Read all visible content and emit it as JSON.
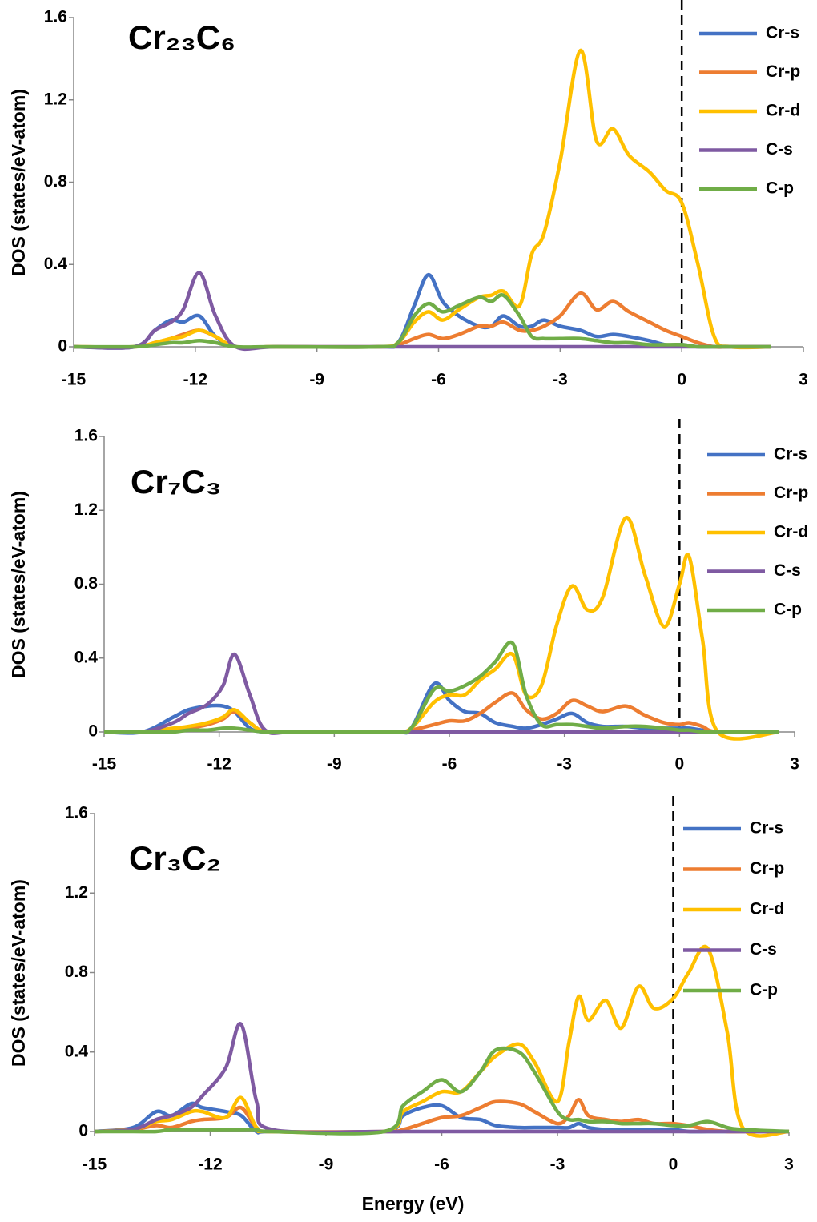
{
  "chart_data": [
    {
      "type": "line",
      "title": "Cr₂₃C₆",
      "y_label": "DOS (states/eV-atom)",
      "x": [
        -15,
        -13.5,
        -13,
        -12.6,
        -12.3,
        -11.9,
        -11.5,
        -11,
        -10,
        -7.5,
        -7,
        -6.6,
        -6.25,
        -5.9,
        -5.5,
        -5,
        -4.7,
        -4.4,
        -4,
        -3.7,
        -3.4,
        -3,
        -2.5,
        -2.1,
        -1.7,
        -1.3,
        -0.8,
        -0.4,
        0,
        0.4,
        0.8,
        1.2,
        2.2
      ],
      "series": [
        {
          "name": "Cr-s",
          "color": "#4472c4",
          "values": [
            0,
            0,
            0.08,
            0.13,
            0.12,
            0.15,
            0.05,
            0,
            0,
            0,
            0.02,
            0.2,
            0.35,
            0.22,
            0.15,
            0.1,
            0.1,
            0.15,
            0.1,
            0.1,
            0.13,
            0.1,
            0.08,
            0.05,
            0.06,
            0.05,
            0.03,
            0.01,
            0.01,
            0,
            0,
            0,
            0
          ]
        },
        {
          "name": "Cr-p",
          "color": "#ed7d31",
          "values": [
            0,
            0,
            0.02,
            0.04,
            0.06,
            0.08,
            0.05,
            0,
            0,
            0,
            0.01,
            0.04,
            0.06,
            0.04,
            0.06,
            0.1,
            0.1,
            0.12,
            0.08,
            0.08,
            0.1,
            0.15,
            0.26,
            0.18,
            0.22,
            0.17,
            0.12,
            0.08,
            0.05,
            0.02,
            0,
            0,
            0
          ]
        },
        {
          "name": "Cr-d",
          "color": "#ffc000",
          "values": [
            0,
            0,
            0.02,
            0.04,
            0.05,
            0.08,
            0.05,
            0,
            0,
            0,
            0.02,
            0.12,
            0.17,
            0.13,
            0.18,
            0.24,
            0.25,
            0.27,
            0.2,
            0.45,
            0.55,
            0.9,
            1.44,
            1.0,
            1.06,
            0.93,
            0.85,
            0.76,
            0.7,
            0.4,
            0.05,
            0,
            0
          ]
        },
        {
          "name": "C-s",
          "color": "#7f5aa2",
          "values": [
            0,
            0,
            0.08,
            0.12,
            0.18,
            0.36,
            0.15,
            0,
            0,
            0,
            0,
            0,
            0,
            0,
            0,
            0,
            0,
            0,
            0,
            0,
            0,
            0,
            0,
            0,
            0,
            0,
            0,
            0,
            0,
            0,
            0,
            0,
            0
          ]
        },
        {
          "name": "C-p",
          "color": "#70ad47",
          "values": [
            0,
            0,
            0.01,
            0.02,
            0.02,
            0.03,
            0.02,
            0,
            0,
            0,
            0.02,
            0.15,
            0.21,
            0.17,
            0.2,
            0.24,
            0.22,
            0.25,
            0.15,
            0.05,
            0.04,
            0.04,
            0.04,
            0.03,
            0.02,
            0.02,
            0.01,
            0.01,
            0.01,
            0,
            0,
            0,
            0
          ]
        }
      ],
      "xlim": [
        -15,
        3
      ],
      "xticks": [
        -15,
        -12,
        -9,
        -6,
        -3,
        0,
        3
      ],
      "ylim": [
        0,
        1.6
      ],
      "yticks": [
        0,
        0.4,
        0.8,
        1.2,
        1.6
      ],
      "legend": "upper right"
    },
    {
      "type": "line",
      "title": "Cr₇C₃",
      "y_label": "DOS (states/eV-atom)",
      "x": [
        -15,
        -14,
        -13.2,
        -12.8,
        -12.3,
        -11.9,
        -11.6,
        -11.2,
        -10.8,
        -10,
        -7.5,
        -7,
        -6.4,
        -6,
        -5.6,
        -5.2,
        -4.8,
        -4.35,
        -4,
        -3.6,
        -3.2,
        -2.8,
        -2.4,
        -2,
        -1.4,
        -0.9,
        -0.4,
        0,
        0.25,
        0.6,
        1,
        2.6
      ],
      "series": [
        {
          "name": "Cr-s",
          "color": "#4472c4",
          "values": [
            0,
            0,
            0.08,
            0.12,
            0.14,
            0.14,
            0.11,
            0.02,
            0,
            0,
            0,
            0.02,
            0.26,
            0.17,
            0.11,
            0.1,
            0.05,
            0.03,
            0.02,
            0.04,
            0.07,
            0.1,
            0.05,
            0.03,
            0.03,
            0.02,
            0.02,
            0.02,
            0.02,
            0.01,
            0,
            0
          ]
        },
        {
          "name": "Cr-p",
          "color": "#ed7d31",
          "values": [
            0,
            0,
            0.01,
            0.02,
            0.04,
            0.07,
            0.11,
            0.05,
            0,
            0,
            0,
            0.01,
            0.04,
            0.06,
            0.06,
            0.1,
            0.16,
            0.21,
            0.12,
            0.07,
            0.1,
            0.17,
            0.14,
            0.11,
            0.14,
            0.09,
            0.05,
            0.04,
            0.05,
            0.03,
            0,
            0
          ]
        },
        {
          "name": "Cr-d",
          "color": "#ffc000",
          "values": [
            0,
            0,
            0.02,
            0.03,
            0.05,
            0.08,
            0.12,
            0.05,
            0,
            0,
            0,
            0.02,
            0.16,
            0.2,
            0.2,
            0.28,
            0.34,
            0.42,
            0.2,
            0.25,
            0.58,
            0.79,
            0.66,
            0.73,
            1.16,
            0.85,
            0.57,
            0.8,
            0.95,
            0.5,
            0,
            0
          ]
        },
        {
          "name": "C-s",
          "color": "#7f5aa2",
          "values": [
            0,
            0,
            0.05,
            0.1,
            0.15,
            0.25,
            0.42,
            0.2,
            0.01,
            0,
            0,
            0,
            0,
            0,
            0,
            0,
            0,
            0,
            0,
            0,
            0,
            0,
            0,
            0,
            0,
            0,
            0,
            0,
            0,
            0,
            0,
            0
          ]
        },
        {
          "name": "C-p",
          "color": "#70ad47",
          "values": [
            0,
            0,
            0,
            0.01,
            0.01,
            0.02,
            0.02,
            0.01,
            0,
            0,
            0,
            0.02,
            0.23,
            0.22,
            0.25,
            0.3,
            0.38,
            0.48,
            0.2,
            0.04,
            0.04,
            0.04,
            0.03,
            0.02,
            0.03,
            0.03,
            0.02,
            0.01,
            0.01,
            0,
            0,
            0
          ]
        }
      ],
      "xlim": [
        -15,
        3
      ],
      "xticks": [
        -15,
        -12,
        -9,
        -6,
        -3,
        0,
        3
      ],
      "ylim": [
        0,
        1.6
      ],
      "yticks": [
        0,
        0.4,
        0.8,
        1.2,
        1.6
      ],
      "legend": "upper right"
    },
    {
      "type": "line",
      "title": "Cr₃C₂",
      "y_label": "DOS (states/eV-atom)",
      "x_label": "Energy (eV)",
      "x": [
        -15,
        -14,
        -13.4,
        -13,
        -12.5,
        -12.2,
        -11.6,
        -11.2,
        -10.8,
        -10.4,
        -7.5,
        -7,
        -6.5,
        -6,
        -5.5,
        -5,
        -4.6,
        -4,
        -3.6,
        -3,
        -2.7,
        -2.45,
        -2.2,
        -1.75,
        -1.35,
        -0.9,
        -0.5,
        0,
        0.4,
        0.9,
        1.4,
        1.8,
        3
      ],
      "series": [
        {
          "name": "Cr-s",
          "color": "#4472c4",
          "values": [
            0,
            0.02,
            0.1,
            0.08,
            0.14,
            0.12,
            0.1,
            0.08,
            0,
            0,
            0,
            0.08,
            0.12,
            0.13,
            0.07,
            0.06,
            0.03,
            0.02,
            0.02,
            0.02,
            0.02,
            0.04,
            0.02,
            0.01,
            0.01,
            0.01,
            0.01,
            0.01,
            0,
            0,
            0,
            0,
            0
          ]
        },
        {
          "name": "Cr-p",
          "color": "#ed7d31",
          "values": [
            0,
            0.01,
            0.03,
            0.02,
            0.05,
            0.06,
            0.07,
            0.12,
            0.02,
            0,
            0,
            0.01,
            0.04,
            0.07,
            0.08,
            0.12,
            0.15,
            0.14,
            0.1,
            0.04,
            0.08,
            0.16,
            0.08,
            0.06,
            0.05,
            0.06,
            0.04,
            0.04,
            0.03,
            0.01,
            0,
            0,
            0
          ]
        },
        {
          "name": "Cr-d",
          "color": "#ffc000",
          "values": [
            0,
            0.01,
            0.05,
            0.06,
            0.1,
            0.1,
            0.07,
            0.17,
            0.02,
            0,
            0,
            0.1,
            0.15,
            0.2,
            0.2,
            0.3,
            0.38,
            0.44,
            0.35,
            0.15,
            0.45,
            0.68,
            0.56,
            0.66,
            0.52,
            0.73,
            0.62,
            0.67,
            0.8,
            0.92,
            0.5,
            0.02,
            0
          ]
        },
        {
          "name": "C-s",
          "color": "#7f5aa2",
          "values": [
            0,
            0.01,
            0.06,
            0.08,
            0.12,
            0.18,
            0.32,
            0.54,
            0.15,
            0.01,
            0,
            0,
            0,
            0,
            0,
            0,
            0,
            0,
            0,
            0,
            0,
            0,
            0,
            0,
            0,
            0,
            0,
            0,
            0,
            0,
            0,
            0,
            0
          ]
        },
        {
          "name": "C-p",
          "color": "#70ad47",
          "values": [
            0,
            0,
            0,
            0.01,
            0.01,
            0.01,
            0.01,
            0.01,
            0.01,
            0,
            0,
            0.13,
            0.2,
            0.26,
            0.2,
            0.3,
            0.41,
            0.4,
            0.3,
            0.1,
            0.06,
            0.06,
            0.05,
            0.05,
            0.04,
            0.04,
            0.04,
            0.03,
            0.03,
            0.05,
            0.02,
            0.01,
            0
          ]
        }
      ],
      "xlim": [
        -15,
        3
      ],
      "xticks": [
        -15,
        -12,
        -9,
        -6,
        -3,
        0,
        3
      ],
      "ylim": [
        0,
        1.6
      ],
      "yticks": [
        0,
        0.4,
        0.8,
        1.2,
        1.6
      ],
      "legend": "upper right"
    }
  ]
}
